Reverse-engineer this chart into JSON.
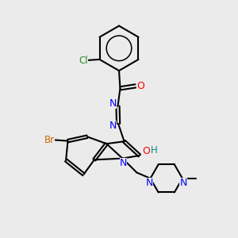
{
  "background_color": "#ebebeb",
  "line_color": "#000000",
  "lw": 1.5,
  "fig_w": 3.0,
  "fig_h": 3.0,
  "dpi": 100,
  "colors": {
    "Cl": "#228B22",
    "Br": "#CC6600",
    "O": "#FF0000",
    "N": "#0000FF",
    "H": "#008B8B",
    "C": "#000000"
  }
}
